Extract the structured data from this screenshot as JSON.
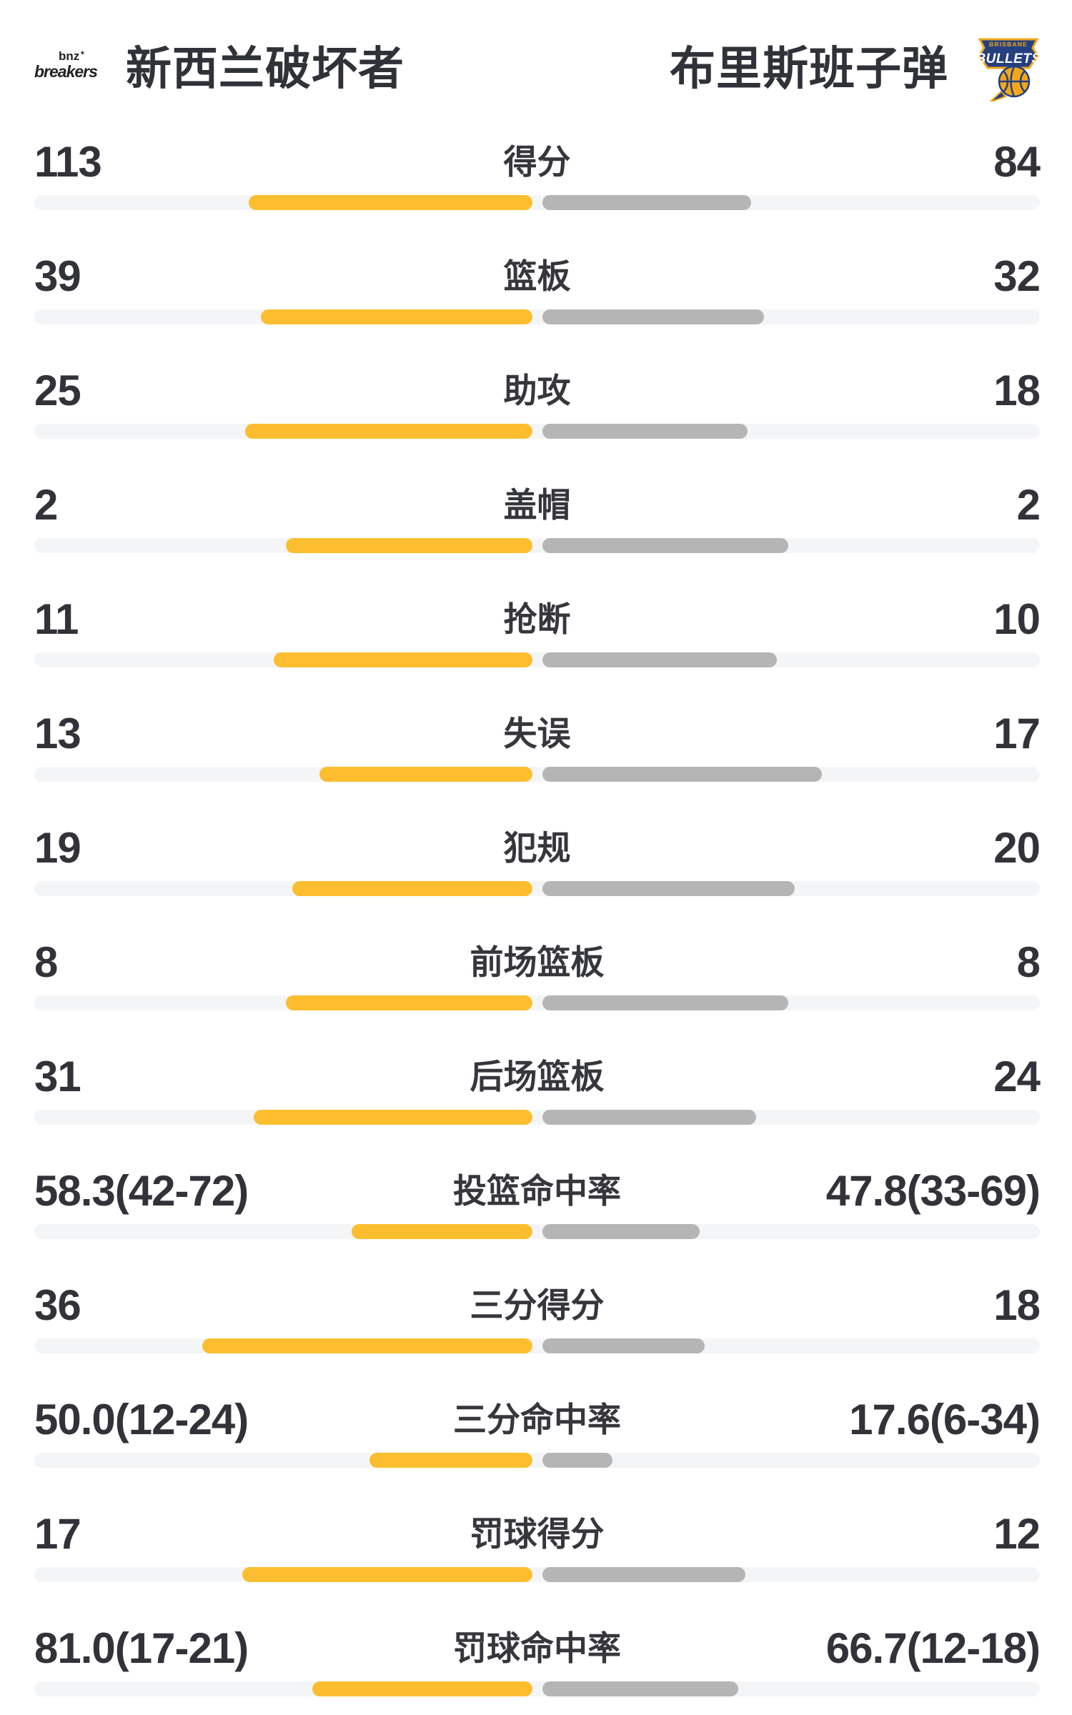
{
  "header": {
    "home": {
      "name": "新西兰破坏者",
      "logo": {
        "line1": "bnz",
        "line2": "breakers"
      }
    },
    "away": {
      "name": "布里斯班子弹",
      "logo": {
        "top": "BRISBANE",
        "main": "BULLETS"
      }
    }
  },
  "colors": {
    "home_bar": "#FCBE2F",
    "away_bar": "#B5B5B5",
    "track": "#F4F5F7",
    "text": "#32333A",
    "bullets_navy": "#24407F",
    "bullets_gold": "#F2A71B"
  },
  "stats": {
    "rows": [
      {
        "label": "得分",
        "home": "113",
        "away": "84",
        "home_value": 113,
        "away_value": 84,
        "type": "count"
      },
      {
        "label": "篮板",
        "home": "39",
        "away": "32",
        "home_value": 39,
        "away_value": 32,
        "type": "count"
      },
      {
        "label": "助攻",
        "home": "25",
        "away": "18",
        "home_value": 25,
        "away_value": 18,
        "type": "count"
      },
      {
        "label": "盖帽",
        "home": "2",
        "away": "2",
        "home_value": 2,
        "away_value": 2,
        "type": "count"
      },
      {
        "label": "抢断",
        "home": "11",
        "away": "10",
        "home_value": 11,
        "away_value": 10,
        "type": "count"
      },
      {
        "label": "失误",
        "home": "13",
        "away": "17",
        "home_value": 13,
        "away_value": 17,
        "type": "count"
      },
      {
        "label": "犯规",
        "home": "19",
        "away": "20",
        "home_value": 19,
        "away_value": 20,
        "type": "count"
      },
      {
        "label": "前场篮板",
        "home": "8",
        "away": "8",
        "home_value": 8,
        "away_value": 8,
        "type": "count"
      },
      {
        "label": "后场篮板",
        "home": "31",
        "away": "24",
        "home_value": 31,
        "away_value": 24,
        "type": "count"
      },
      {
        "label": "投篮命中率",
        "home": "58.3(42-72)",
        "away": "47.8(33-69)",
        "home_value": 58.3,
        "away_value": 47.8,
        "type": "percent"
      },
      {
        "label": "三分得分",
        "home": "36",
        "away": "18",
        "home_value": 36,
        "away_value": 18,
        "type": "count"
      },
      {
        "label": "三分命中率",
        "home": "50.0(12-24)",
        "away": "17.6(6-34)",
        "home_value": 50.0,
        "away_value": 17.6,
        "type": "percent"
      },
      {
        "label": "罚球得分",
        "home": "17",
        "away": "12",
        "home_value": 17,
        "away_value": 12,
        "type": "count"
      },
      {
        "label": "罚球命中率",
        "home": "81.0(17-21)",
        "away": "66.7(12-18)",
        "home_value": 81.0,
        "away_value": 66.7,
        "type": "percent"
      }
    ]
  }
}
